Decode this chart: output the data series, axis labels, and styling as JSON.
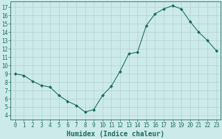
{
  "xlabel": "Humidex (Indice chaleur)",
  "x": [
    0,
    1,
    2,
    3,
    4,
    5,
    6,
    7,
    8,
    9,
    10,
    11,
    12,
    13,
    14,
    15,
    16,
    17,
    18,
    19,
    20,
    21,
    22,
    23
  ],
  "y": [
    9.0,
    8.8,
    8.1,
    7.6,
    7.4,
    6.4,
    5.7,
    5.2,
    4.4,
    4.7,
    6.4,
    7.5,
    9.3,
    11.4,
    11.6,
    14.8,
    16.2,
    16.8,
    17.2,
    16.8,
    15.3,
    14.0,
    13.0,
    11.8
  ],
  "line_color": "#1a6b5a",
  "marker": "D",
  "marker_size": 2,
  "bg_color": "#cdeaea",
  "grid_color": "#b0d0d0",
  "ylim": [
    3.5,
    17.7
  ],
  "xlim": [
    -0.5,
    23.5
  ],
  "yticks": [
    4,
    5,
    6,
    7,
    8,
    9,
    10,
    11,
    12,
    13,
    14,
    15,
    16,
    17
  ],
  "xticks": [
    0,
    1,
    2,
    3,
    4,
    5,
    6,
    7,
    8,
    9,
    10,
    11,
    12,
    13,
    14,
    15,
    16,
    17,
    18,
    19,
    20,
    21,
    22,
    23
  ],
  "tick_color": "#1a6b5a",
  "label_fontsize": 5.5,
  "axis_label_fontsize": 7
}
